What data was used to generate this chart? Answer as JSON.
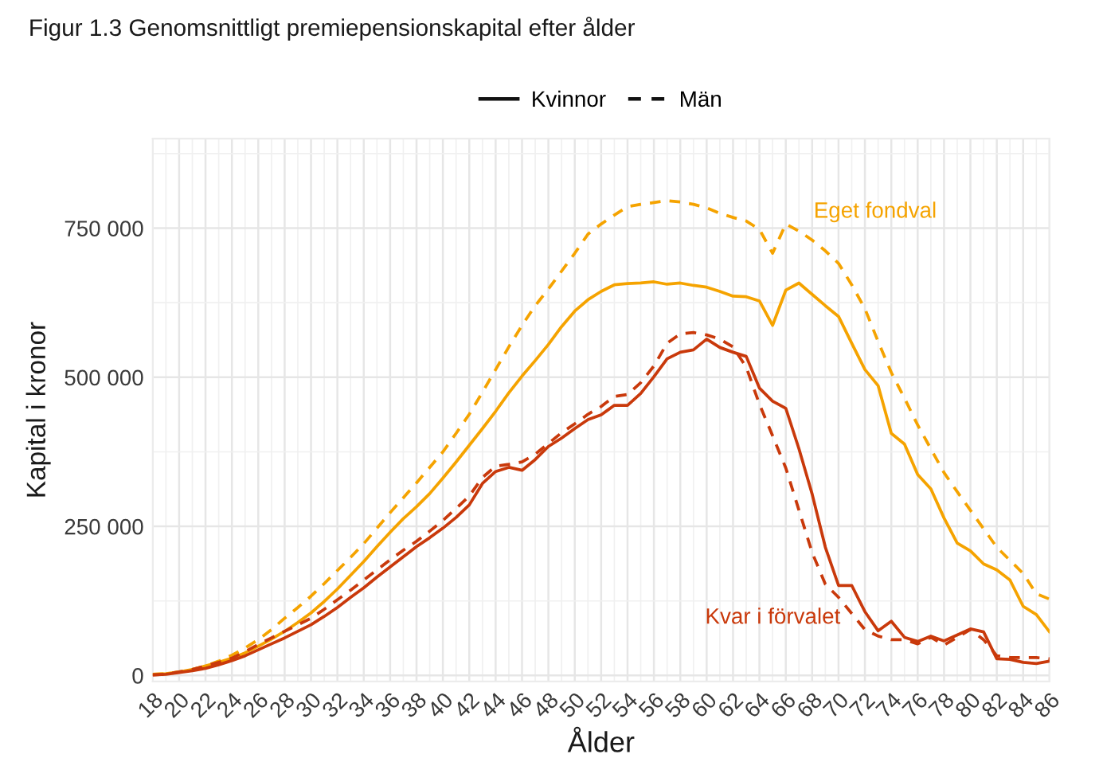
{
  "chart_data": {
    "type": "line",
    "title": "Figur 1.3 Genomsnittligt premiepensionskapital efter ålder",
    "xlabel": "Ålder",
    "ylabel": "Kapital i kronor",
    "x": [
      18,
      19,
      20,
      21,
      22,
      23,
      24,
      25,
      26,
      27,
      28,
      29,
      30,
      31,
      32,
      33,
      34,
      35,
      36,
      37,
      38,
      39,
      40,
      41,
      42,
      43,
      44,
      45,
      46,
      47,
      48,
      49,
      50,
      51,
      52,
      53,
      54,
      55,
      56,
      57,
      58,
      59,
      60,
      61,
      62,
      63,
      64,
      65,
      66,
      67,
      68,
      69,
      70,
      71,
      72,
      73,
      74,
      75,
      76,
      77,
      78,
      79,
      80,
      81,
      82,
      83,
      84,
      85,
      86
    ],
    "series": [
      {
        "color": "#f5a300",
        "line_style": "solid",
        "values": [
          2000,
          3000,
          6000,
          10000,
          16000,
          22000,
          29000,
          38000,
          49000,
          61000,
          74000,
          89000,
          105000,
          124000,
          145000,
          168000,
          191000,
          216000,
          240000,
          263000,
          283000,
          305000,
          331000,
          358000,
          386000,
          414000,
          443000,
          474000,
          502000,
          528000,
          555000,
          585000,
          611000,
          630000,
          644000,
          655000,
          657000,
          658000,
          660000,
          656000,
          658000,
          654000,
          651000,
          644000,
          636000,
          635000,
          628000,
          587000,
          646000,
          658000,
          639000,
          620000,
          602000,
          557000,
          513000,
          486000,
          406000,
          388000,
          337000,
          313000,
          264000,
          222000,
          209000,
          187000,
          177000,
          160000,
          116000,
          102000,
          73000
        ]
      },
      {
        "name": "Eget fondval",
        "color": "#f5a300",
        "line_style": "dashed",
        "values": [
          2000,
          3000,
          6000,
          10000,
          16000,
          24000,
          34000,
          46000,
          60000,
          77000,
          96000,
          114000,
          133000,
          154000,
          176000,
          198000,
          221000,
          247000,
          273000,
          298000,
          323000,
          349000,
          375000,
          406000,
          438000,
          475000,
          513000,
          551000,
          587000,
          620000,
          648000,
          678000,
          708000,
          740000,
          757000,
          772000,
          786000,
          790000,
          793000,
          796000,
          794000,
          790000,
          784000,
          775000,
          768000,
          762000,
          748000,
          708000,
          757000,
          745000,
          730000,
          712000,
          691000,
          655000,
          615000,
          560000,
          508000,
          465000,
          420000,
          380000,
          340000,
          308000,
          277000,
          246000,
          215000,
          193000,
          171000,
          137000,
          128000
        ]
      },
      {
        "color": "#c9390b",
        "line_style": "solid",
        "values": [
          1000,
          2000,
          5000,
          8000,
          12000,
          18000,
          25000,
          33000,
          43000,
          53000,
          63000,
          74000,
          85000,
          99000,
          114000,
          131000,
          147000,
          165000,
          182000,
          199000,
          216000,
          231000,
          247000,
          265000,
          286000,
          322000,
          342000,
          349000,
          344000,
          362000,
          384000,
          398000,
          414000,
          429000,
          437000,
          453000,
          453000,
          473000,
          501000,
          531000,
          542000,
          546000,
          564000,
          550000,
          542000,
          535000,
          482000,
          460000,
          448000,
          380000,
          304000,
          215000,
          151000,
          151000,
          107000,
          75000,
          91000,
          64000,
          57000,
          66000,
          58000,
          68000,
          78000,
          73000,
          28000,
          27000,
          22000,
          20000,
          24000
        ]
      },
      {
        "name": "Kvar i förvalet",
        "color": "#c9390b",
        "line_style": "dashed",
        "values": [
          1000,
          2000,
          6000,
          10000,
          16000,
          22000,
          29000,
          40000,
          52000,
          63000,
          74000,
          85000,
          96000,
          111000,
          127000,
          143000,
          160000,
          177000,
          194000,
          210000,
          225000,
          242000,
          260000,
          280000,
          301000,
          332000,
          351000,
          354000,
          358000,
          371000,
          389000,
          407000,
          422000,
          438000,
          451000,
          468000,
          471000,
          491000,
          519000,
          557000,
          573000,
          575000,
          571000,
          564000,
          551000,
          517000,
          455000,
          402000,
          348000,
          277000,
          206000,
          153000,
          131000,
          104000,
          77000,
          66000,
          60000,
          60000,
          53000,
          64000,
          51000,
          64000,
          77000,
          60000,
          33000,
          30000,
          30000,
          30000,
          28000
        ]
      }
    ],
    "annotations": [
      "Kvinnor",
      "Män"
    ],
    "xlim": [
      18,
      86
    ],
    "ylim": [
      -10000,
      900000
    ],
    "xticks": [
      18,
      20,
      22,
      24,
      26,
      28,
      30,
      32,
      34,
      36,
      38,
      40,
      42,
      44,
      46,
      48,
      50,
      52,
      54,
      56,
      58,
      60,
      62,
      64,
      66,
      68,
      70,
      72,
      74,
      76,
      78,
      80,
      82,
      84,
      86
    ],
    "yticks": [
      0,
      {
        "value": 250000,
        "label": "250 000"
      },
      {
        "value": 500000,
        "label": "500 000"
      },
      {
        "value": 750000,
        "label": "750 000"
      }
    ],
    "grid": true
  }
}
